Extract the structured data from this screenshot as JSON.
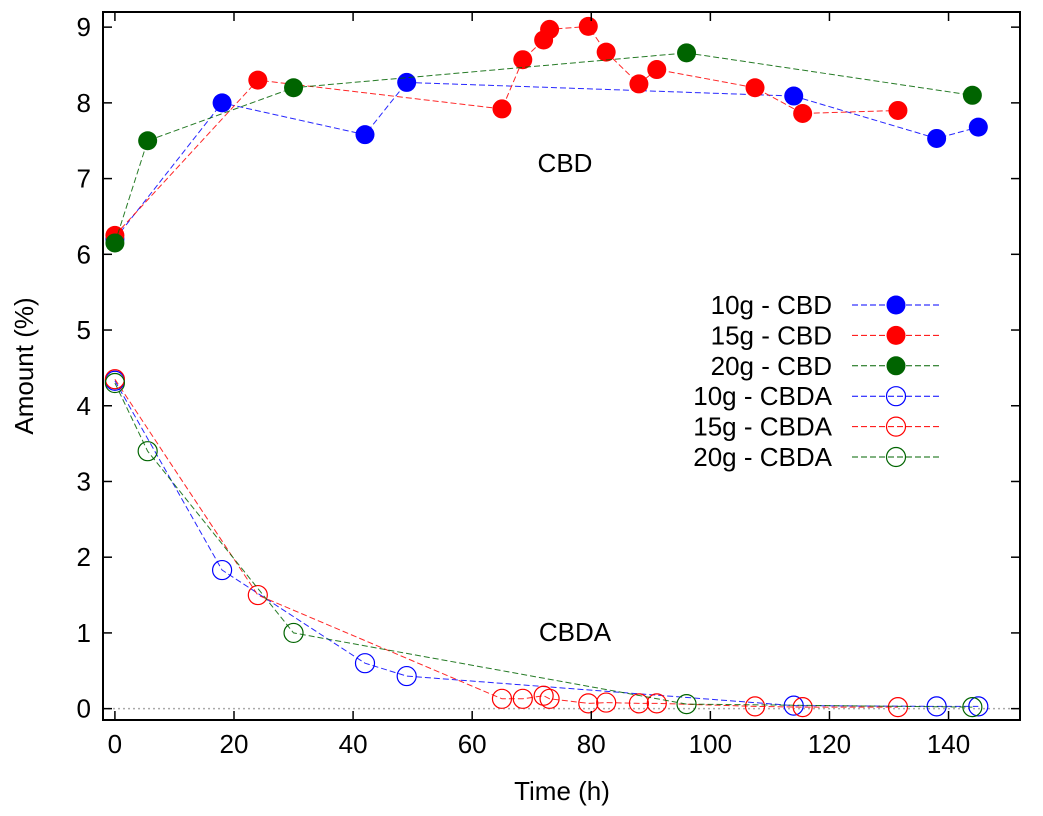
{
  "chart_data": {
    "type": "line",
    "xlabel": "Time (h)",
    "ylabel": "Amount (%)",
    "xlim": [
      -2,
      152
    ],
    "ylim": [
      -0.15,
      9.2
    ],
    "xticks": [
      0,
      20,
      40,
      60,
      80,
      100,
      120,
      140
    ],
    "yticks": [
      0,
      1,
      2,
      3,
      4,
      5,
      6,
      7,
      8,
      9
    ],
    "grid": false,
    "zero_line": "dotted gray",
    "legend_position": "right-middle",
    "annotations": [
      {
        "text": "CBD",
        "x": 76,
        "y": 7.2
      },
      {
        "text": "CBDA",
        "x": 77,
        "y": 1.0
      }
    ],
    "series": [
      {
        "name": "10g - CBD",
        "color": "#0000ff",
        "marker": "filled-circle",
        "x": [
          0,
          18,
          42,
          49,
          114,
          138,
          145
        ],
        "y": [
          6.2,
          8.0,
          7.58,
          8.27,
          8.09,
          7.53,
          7.68
        ]
      },
      {
        "name": "15g - CBD",
        "color": "#ff0000",
        "marker": "filled-circle",
        "x": [
          0,
          24,
          65,
          68.5,
          72,
          73,
          79.5,
          82.5,
          88,
          91,
          107.5,
          115.5,
          131.5
        ],
        "y": [
          6.25,
          8.3,
          7.92,
          8.57,
          8.83,
          8.97,
          9.01,
          8.67,
          8.25,
          8.44,
          8.2,
          7.86,
          7.9
        ]
      },
      {
        "name": "20g - CBD",
        "color": "#006400",
        "marker": "filled-circle",
        "x": [
          0,
          5.5,
          30,
          96,
          144
        ],
        "y": [
          6.15,
          7.5,
          8.2,
          8.66,
          8.1
        ]
      },
      {
        "name": "10g - CBDA",
        "color": "#0000ff",
        "marker": "open-circle",
        "x": [
          0,
          18,
          42,
          49,
          114,
          138,
          145
        ],
        "y": [
          4.33,
          1.83,
          0.6,
          0.43,
          0.04,
          0.03,
          0.03
        ]
      },
      {
        "name": "15g - CBDA",
        "color": "#ff0000",
        "marker": "open-circle",
        "x": [
          0,
          24,
          65,
          68.5,
          72,
          73,
          79.5,
          82.5,
          88,
          91,
          107.5,
          115.5,
          131.5
        ],
        "y": [
          4.35,
          1.5,
          0.13,
          0.13,
          0.17,
          0.13,
          0.07,
          0.08,
          0.07,
          0.07,
          0.03,
          0.02,
          0.02
        ]
      },
      {
        "name": "20g - CBDA",
        "color": "#006400",
        "marker": "open-circle",
        "x": [
          0,
          5.5,
          30,
          96,
          144
        ],
        "y": [
          4.3,
          3.4,
          1.0,
          0.06,
          0.02
        ]
      }
    ]
  }
}
